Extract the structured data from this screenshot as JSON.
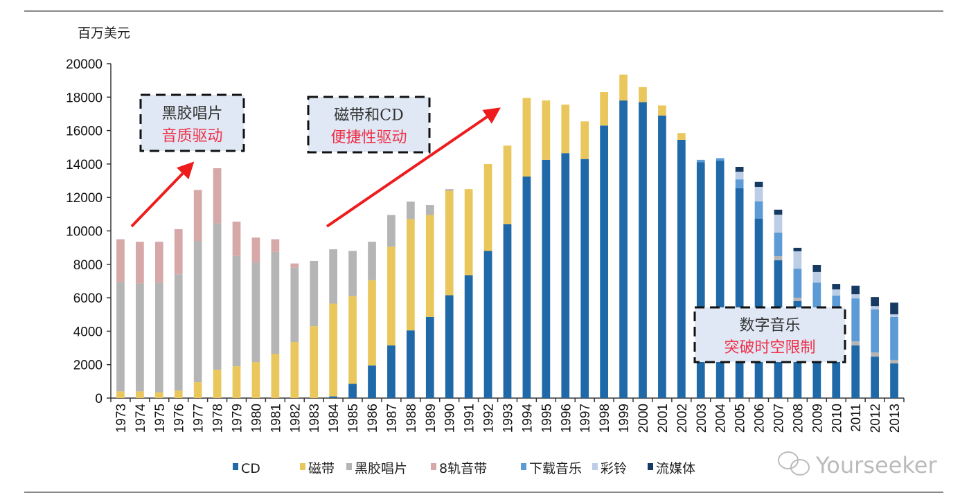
{
  "chart_data": {
    "type": "bar",
    "stacked": true,
    "ylabel": "百万美元",
    "ylim": [
      0,
      20000
    ],
    "yticks": [
      0,
      2000,
      4000,
      6000,
      8000,
      10000,
      12000,
      14000,
      16000,
      18000,
      20000
    ],
    "grid": false,
    "legend_position": "bottom",
    "categories": [
      "1973",
      "1974",
      "1975",
      "1976",
      "1977",
      "1978",
      "1979",
      "1980",
      "1981",
      "1982",
      "1983",
      "1984",
      "1985",
      "1986",
      "1987",
      "1988",
      "1989",
      "1990",
      "1991",
      "1992",
      "1993",
      "1994",
      "1995",
      "1996",
      "1997",
      "1998",
      "1999",
      "2000",
      "2001",
      "2002",
      "2003",
      "2004",
      "2005",
      "2006",
      "2007",
      "2008",
      "2009",
      "2010",
      "2011",
      "2012",
      "2013"
    ],
    "series": [
      {
        "name": "CD",
        "color": "#1f69a8",
        "values": [
          0,
          0,
          0,
          0,
          0,
          0,
          0,
          0,
          0,
          0,
          0,
          100,
          850,
          1950,
          3150,
          4050,
          4850,
          6150,
          7350,
          8800,
          10400,
          13250,
          14250,
          14650,
          14300,
          16300,
          17800,
          17700,
          16900,
          15450,
          14100,
          14200,
          12550,
          10740,
          8240,
          5800,
          4300,
          3400,
          3150,
          2480,
          2070
        ]
      },
      {
        "name": "磁带",
        "color": "#e9c75c",
        "values": [
          400,
          400,
          350,
          450,
          950,
          1700,
          1900,
          2150,
          2650,
          3350,
          4300,
          5550,
          5250,
          5100,
          5900,
          6650,
          6100,
          6250,
          5150,
          5200,
          4700,
          4700,
          3550,
          2900,
          2250,
          2000,
          1550,
          900,
          600,
          400,
          0,
          0,
          0,
          0,
          0,
          0,
          0,
          0,
          0,
          0,
          0
        ]
      },
      {
        "name": "黑胶唱片",
        "color": "#b5b5b5",
        "values": [
          6550,
          6450,
          6550,
          6950,
          8450,
          8750,
          6600,
          5950,
          6100,
          4450,
          3900,
          3250,
          2700,
          2300,
          1900,
          1050,
          600,
          100,
          0,
          0,
          0,
          0,
          0,
          0,
          0,
          0,
          0,
          0,
          0,
          0,
          0,
          0,
          0,
          0,
          250,
          200,
          200,
          200,
          240,
          250,
          210
        ]
      },
      {
        "name": "8轨音带",
        "color": "#d6a8a8",
        "values": [
          2550,
          2500,
          2450,
          2700,
          3050,
          3300,
          2050,
          1500,
          750,
          250,
          0,
          0,
          0,
          0,
          0,
          0,
          0,
          0,
          0,
          0,
          0,
          0,
          0,
          0,
          0,
          0,
          0,
          0,
          0,
          0,
          0,
          0,
          0,
          0,
          0,
          0,
          0,
          0,
          0,
          0,
          0
        ]
      },
      {
        "name": "下载音乐",
        "color": "#5d9bd6",
        "values": [
          0,
          0,
          0,
          0,
          0,
          0,
          0,
          0,
          0,
          0,
          0,
          0,
          0,
          0,
          0,
          0,
          0,
          0,
          0,
          0,
          0,
          0,
          0,
          0,
          0,
          0,
          0,
          0,
          0,
          0,
          150,
          150,
          530,
          1020,
          1410,
          1740,
          2410,
          2530,
          2570,
          2570,
          2570
        ]
      },
      {
        "name": "彩铃",
        "color": "#bccde6",
        "values": [
          0,
          0,
          0,
          0,
          0,
          0,
          0,
          0,
          0,
          0,
          0,
          0,
          0,
          0,
          0,
          0,
          0,
          0,
          0,
          0,
          0,
          0,
          0,
          0,
          0,
          0,
          0,
          0,
          0,
          0,
          0,
          0,
          460,
          870,
          1070,
          1040,
          630,
          370,
          250,
          200,
          160
        ]
      },
      {
        "name": "流媒体",
        "color": "#173a62",
        "values": [
          0,
          0,
          0,
          0,
          0,
          0,
          0,
          0,
          0,
          0,
          0,
          0,
          0,
          0,
          0,
          0,
          0,
          0,
          0,
          0,
          0,
          0,
          0,
          0,
          0,
          0,
          0,
          0,
          0,
          0,
          0,
          0,
          290,
          300,
          300,
          210,
          410,
          330,
          510,
          540,
          700
        ]
      }
    ],
    "annotations": [
      {
        "line1": "黑胶唱片",
        "line2": "音质驱动"
      },
      {
        "line1": "磁带和CD",
        "line2": "便捷性驱动"
      },
      {
        "line1": "数字音乐",
        "line2": "突破时空限制"
      }
    ],
    "arrow_color": "#ee1c1c",
    "box_fill": "#dfe8f4"
  },
  "watermark": "Yourseeker"
}
